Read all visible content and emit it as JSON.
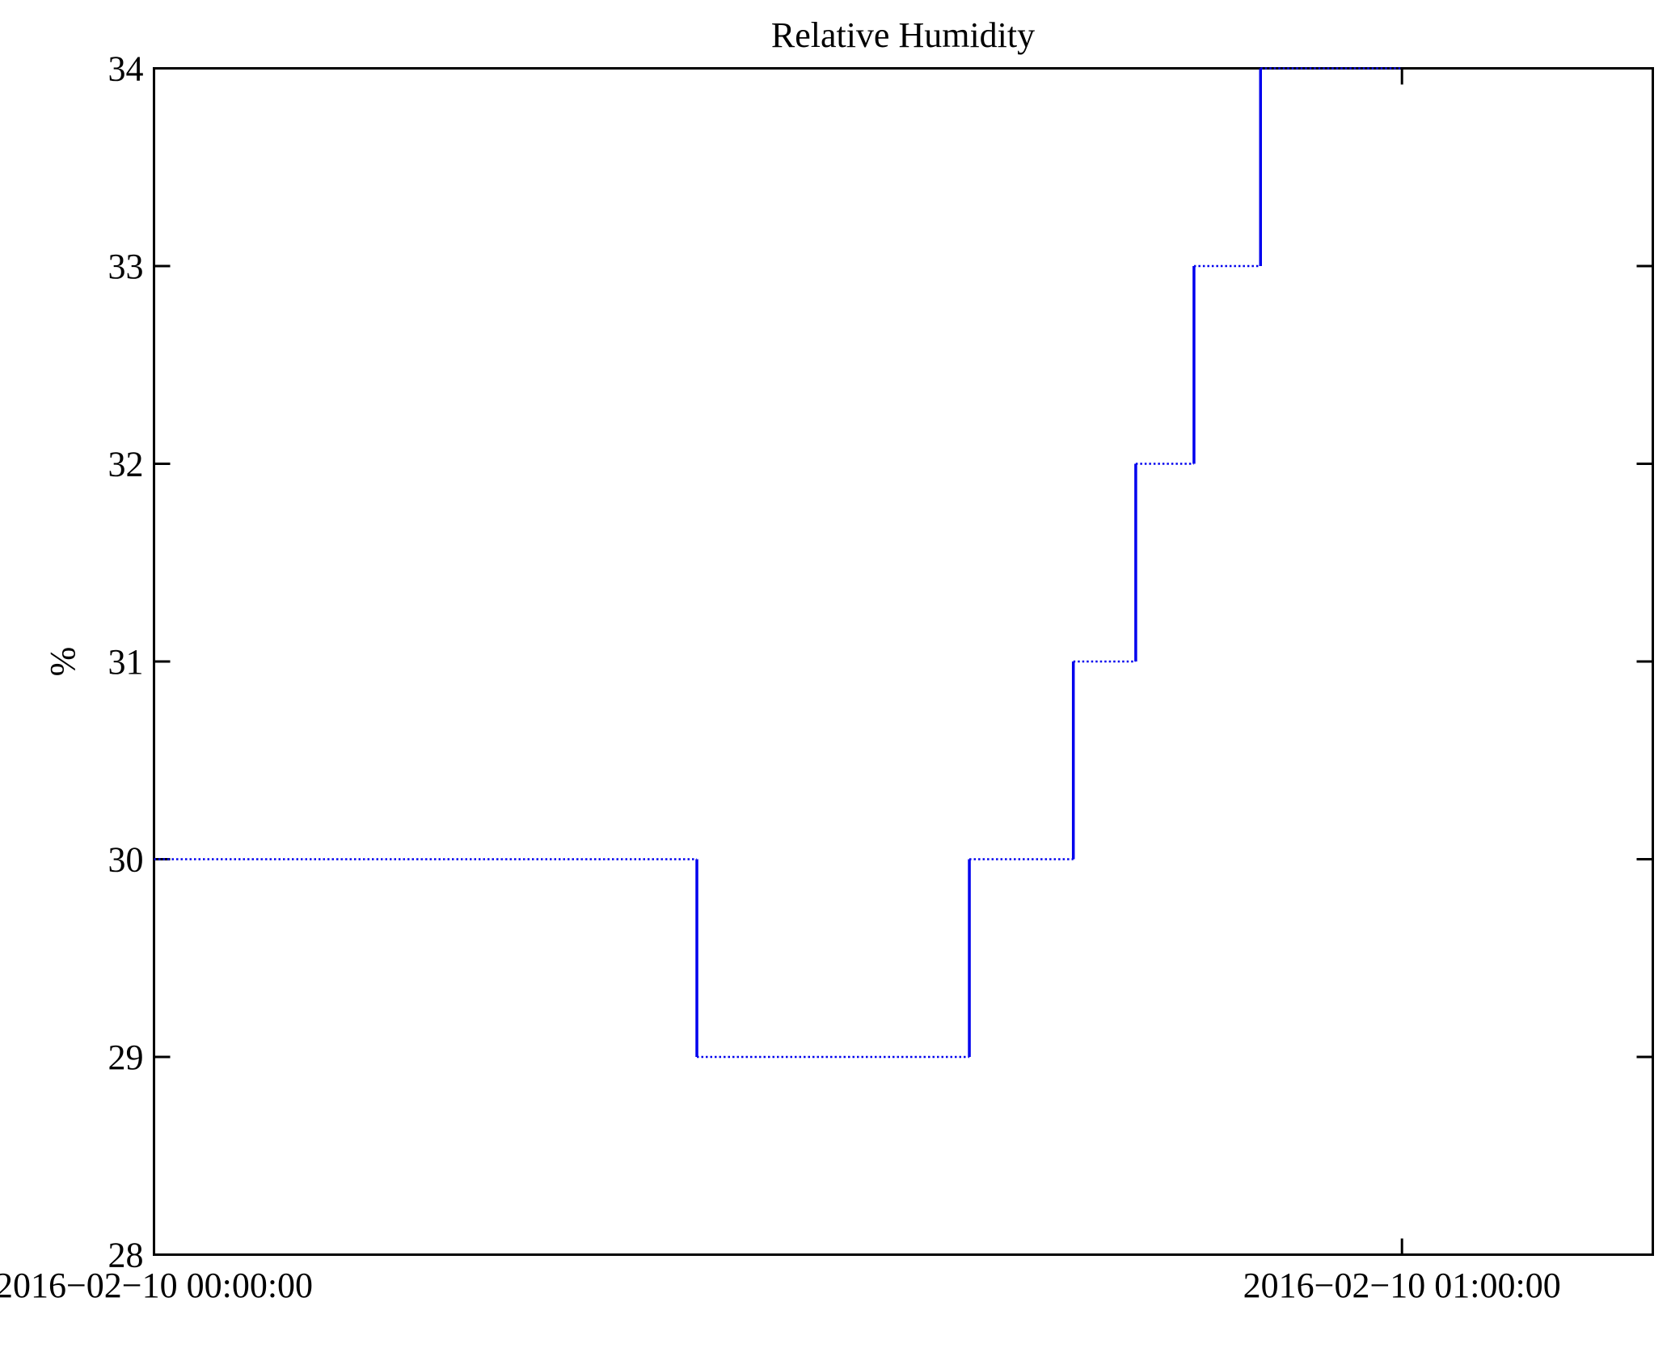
{
  "chart_data": {
    "type": "line",
    "subtype": "step",
    "title": "Relative Humidity",
    "xlabel": "",
    "ylabel": "%",
    "grid": false,
    "legend": null,
    "line_color": "#0000ee",
    "axis_color": "#000000",
    "background_color": "#ffffff",
    "ylim": [
      28,
      34
    ],
    "xlim_minutes": [
      0,
      72.06
    ],
    "x_start_datetime": "2016-02-10 00:00:00",
    "x_end_of_data": "2016-02-10 01:00:00",
    "y_ticks": [
      28,
      29,
      30,
      31,
      32,
      33,
      34
    ],
    "x_ticks": [
      {
        "pos_min": 0,
        "label": "2016−02−10 00:00:00"
      },
      {
        "pos_min": 60,
        "label": "2016−02−10 01:00:00"
      }
    ],
    "steps": [
      {
        "value": 30,
        "from": "00:00:00",
        "to": "00:26:06",
        "from_min": 0.0,
        "to_min": 26.1
      },
      {
        "value": 29,
        "from": "00:26:06",
        "to": "00:39:12",
        "from_min": 26.1,
        "to_min": 39.2
      },
      {
        "value": 30,
        "from": "00:39:12",
        "to": "00:44:12",
        "from_min": 39.2,
        "to_min": 44.2
      },
      {
        "value": 31,
        "from": "00:44:12",
        "to": "00:47:12",
        "from_min": 44.2,
        "to_min": 47.2
      },
      {
        "value": 32,
        "from": "00:47:12",
        "to": "00:50:00",
        "from_min": 47.2,
        "to_min": 50.0
      },
      {
        "value": 33,
        "from": "00:50:00",
        "to": "00:53:12",
        "from_min": 50.0,
        "to_min": 53.2
      },
      {
        "value": 34,
        "from": "00:53:12",
        "to": "01:00:00",
        "from_min": 53.2,
        "to_min": 60.0
      }
    ]
  }
}
